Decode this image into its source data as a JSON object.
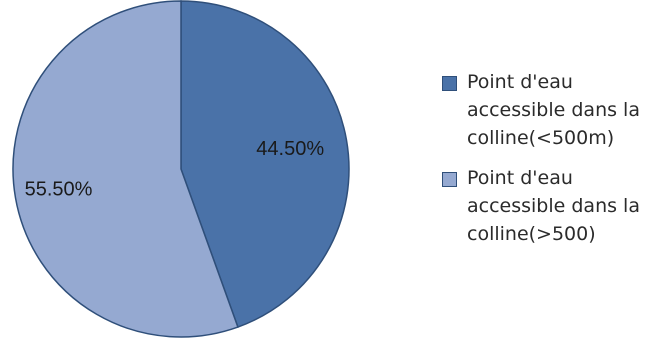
{
  "chart_data": {
    "type": "pie",
    "title": "",
    "slices": [
      {
        "label": "Point d'eau accessible dans la colline(<500m)",
        "value": 44.5,
        "display": "44.50%",
        "color": "#4A72A8"
      },
      {
        "label": "Point d'eau accessible dans la colline(>500)",
        "value": 55.5,
        "display": "55.50%",
        "color": "#95A9D1"
      }
    ],
    "legend": {
      "placement": "right",
      "items": [
        {
          "label": "Point d'eau accessible dans la colline(<500m)",
          "color": "#4A72A8"
        },
        {
          "label": "Point d'eau accessible dans la colline(>500)",
          "color": "#95A9D1"
        }
      ]
    }
  }
}
